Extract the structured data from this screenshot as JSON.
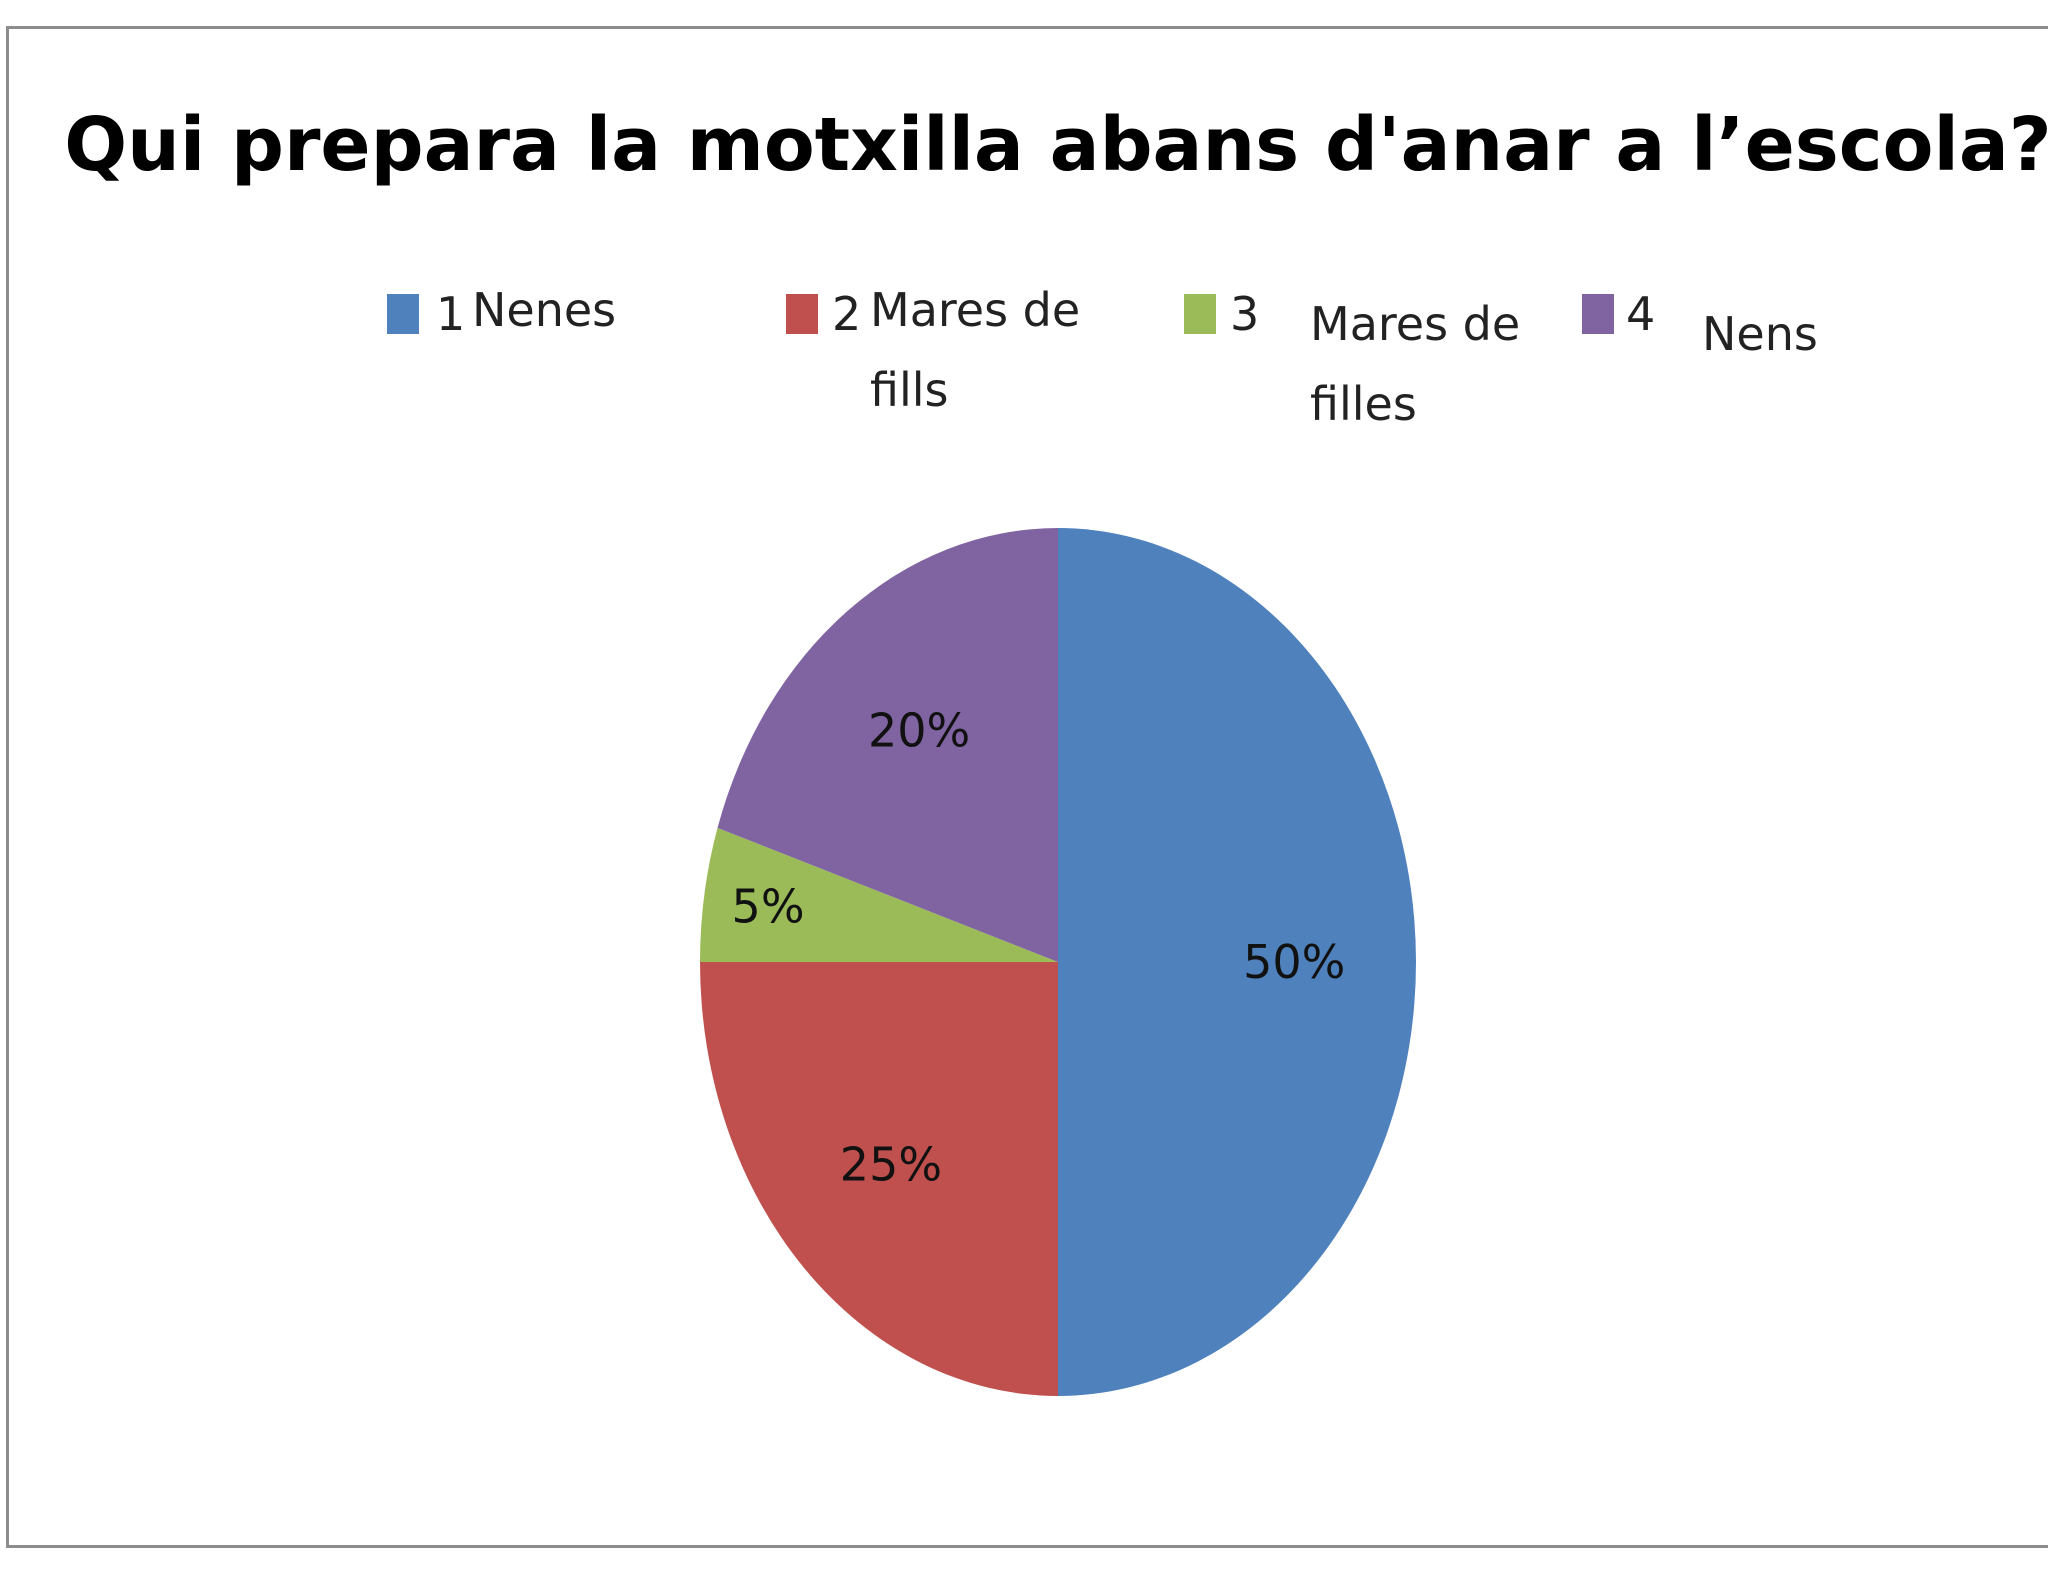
{
  "chart_data": {
    "type": "pie",
    "title": "Qui prepara la motxilla abans d'anar a l’escola?",
    "legend_position": "top",
    "slices": [
      {
        "number": "1",
        "label_lines": [
          "Nenes"
        ],
        "value": 50,
        "data_label": "50%",
        "color": "#4F81BD"
      },
      {
        "number": "2",
        "label_lines": [
          "Mares de",
          "fills"
        ],
        "value": 25,
        "data_label": "25%",
        "color": "#C0504D"
      },
      {
        "number": "3",
        "label_lines": [
          "Mares de",
          "filles"
        ],
        "value": 5,
        "data_label": "5%",
        "color": "#9BBB59"
      },
      {
        "number": "4",
        "label_lines": [
          "Nens"
        ],
        "value": 20,
        "data_label": "20%",
        "color": "#8064A2"
      }
    ]
  }
}
